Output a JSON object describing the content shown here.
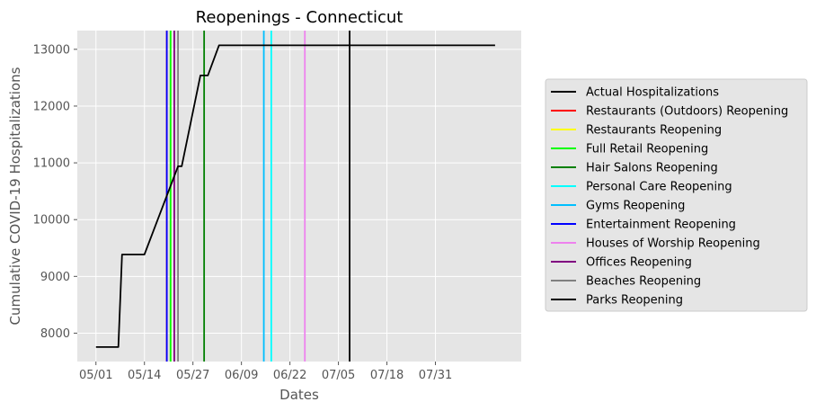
{
  "chart_data": {
    "type": "line",
    "title": "Reopenings - Connecticut",
    "xlabel": "Dates",
    "ylabel": "Cumulative COVID-19 Hospitalizations",
    "x_ticks": [
      "05/01",
      "05/14",
      "05/27",
      "06/09",
      "06/22",
      "07/05",
      "07/18",
      "07/31"
    ],
    "y_ticks": [
      8000,
      9000,
      10000,
      11000,
      12000,
      13000
    ],
    "xlim": [
      "2020-04-26",
      "2020-08-23"
    ],
    "ylim": [
      7500,
      13330
    ],
    "grid": true,
    "legend_position": "right",
    "series": [
      {
        "name": "Actual Hospitalizations",
        "color": "#000000",
        "points": [
          [
            "2020-05-01",
            7755
          ],
          [
            "2020-05-07",
            7755
          ],
          [
            "2020-05-08",
            9385
          ],
          [
            "2020-05-14",
            9385
          ],
          [
            "2020-05-23",
            10940
          ],
          [
            "2020-05-24",
            10940
          ],
          [
            "2020-05-29",
            12540
          ],
          [
            "2020-05-31",
            12540
          ],
          [
            "2020-06-03",
            13070
          ],
          [
            "2020-08-16",
            13070
          ]
        ]
      }
    ],
    "reopenings": [
      {
        "name": "Restaurants (Outdoors) Reopening",
        "date": "2020-05-20",
        "color": "#ff0000"
      },
      {
        "name": "Restaurants Reopening",
        "date": "2020-05-21",
        "color": "#ffff00"
      },
      {
        "name": "Full Retail Reopening",
        "date": "2020-05-21",
        "color": "#00ff00"
      },
      {
        "name": "Hair Salons Reopening",
        "date": "2020-05-30",
        "color": "#008000"
      },
      {
        "name": "Personal Care Reopening",
        "date": "2020-06-17",
        "color": "#00ffff"
      },
      {
        "name": "Gyms Reopening",
        "date": "2020-06-15",
        "color": "#00bfff"
      },
      {
        "name": "Entertainment Reopening",
        "date": "2020-05-20",
        "color": "#0000ff"
      },
      {
        "name": "Houses of Worship Reopening",
        "date": "2020-06-26",
        "color": "#ee82ee"
      },
      {
        "name": "Offices Reopening",
        "date": "2020-05-22",
        "color": "#800080"
      },
      {
        "name": "Beaches Reopening",
        "date": "2020-05-23",
        "color": "#808080"
      },
      {
        "name": "Parks Reopening",
        "date": "2020-07-08",
        "color": "#000000"
      }
    ]
  }
}
